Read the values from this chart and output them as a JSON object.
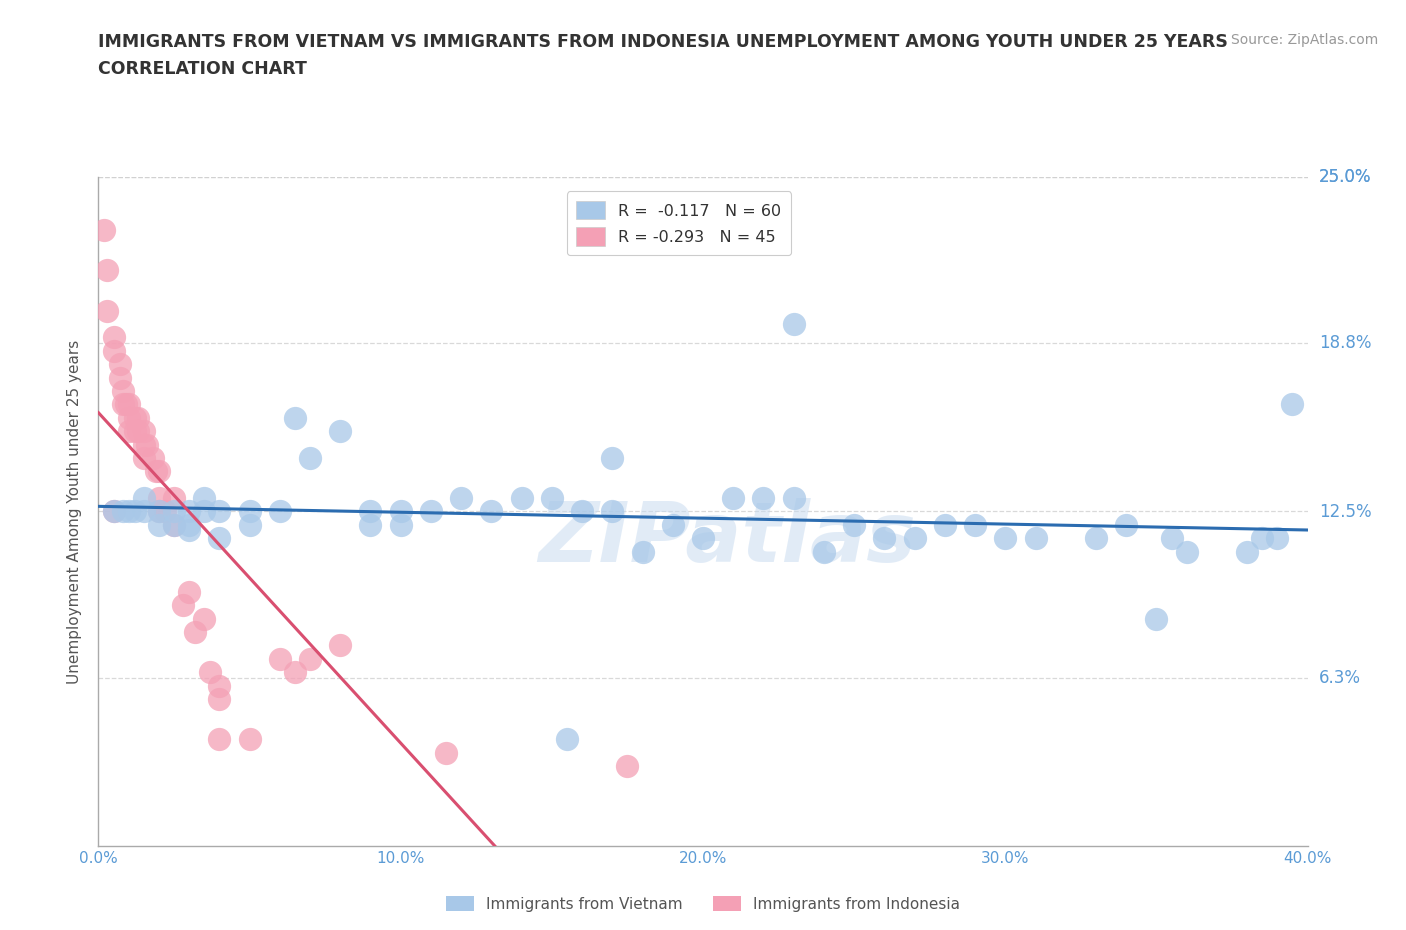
{
  "title_line1": "IMMIGRANTS FROM VIETNAM VS IMMIGRANTS FROM INDONESIA UNEMPLOYMENT AMONG YOUTH UNDER 25 YEARS",
  "title_line2": "CORRELATION CHART",
  "source_text": "Source: ZipAtlas.com",
  "ylabel": "Unemployment Among Youth under 25 years",
  "xmin": 0.0,
  "xmax": 0.4,
  "ymin": 0.0,
  "ymax": 0.25,
  "ytick_labels": [
    "6.3%",
    "12.5%",
    "18.8%",
    "25.0%"
  ],
  "ytick_values": [
    0.063,
    0.125,
    0.188,
    0.25
  ],
  "xtick_labels": [
    "0.0%",
    "10.0%",
    "20.0%",
    "30.0%",
    "40.0%"
  ],
  "xtick_values": [
    0.0,
    0.1,
    0.2,
    0.3,
    0.4
  ],
  "right_ytick_labels": [
    "6.3%",
    "12.5%",
    "18.8%",
    "25.0%"
  ],
  "right_ytick_values": [
    0.063,
    0.125,
    0.188,
    0.25
  ],
  "vietnam_color": "#a8c8e8",
  "indonesia_color": "#f4a0b5",
  "trend_vietnam_color": "#2b6cb0",
  "trend_indonesia_color": "#d94f70",
  "legend_label_vietnam": "R =  -0.117   N = 60",
  "legend_label_indonesia": "R = -0.293   N = 45",
  "watermark_color": "#c5d9ef",
  "label_color": "#5b9bd5",
  "grid_color": "#d0d0d0",
  "background_color": "#ffffff",
  "title_fontsize": 12.5,
  "subtitle_fontsize": 12.5,
  "tick_fontsize": 11,
  "source_fontsize": 10,
  "ylabel_fontsize": 11,
  "vietnam_x": [
    0.005,
    0.008,
    0.01,
    0.012,
    0.015,
    0.015,
    0.02,
    0.02,
    0.025,
    0.025,
    0.03,
    0.03,
    0.03,
    0.035,
    0.035,
    0.04,
    0.04,
    0.05,
    0.05,
    0.06,
    0.065,
    0.07,
    0.08,
    0.09,
    0.09,
    0.1,
    0.1,
    0.11,
    0.12,
    0.13,
    0.14,
    0.15,
    0.16,
    0.17,
    0.17,
    0.18,
    0.19,
    0.2,
    0.21,
    0.22,
    0.23,
    0.24,
    0.25,
    0.26,
    0.27,
    0.28,
    0.29,
    0.3,
    0.31,
    0.33,
    0.34,
    0.35,
    0.355,
    0.36,
    0.38,
    0.385,
    0.39,
    0.395,
    0.23,
    0.155
  ],
  "vietnam_y": [
    0.125,
    0.125,
    0.125,
    0.125,
    0.125,
    0.13,
    0.125,
    0.12,
    0.12,
    0.125,
    0.118,
    0.125,
    0.12,
    0.13,
    0.125,
    0.125,
    0.115,
    0.125,
    0.12,
    0.125,
    0.16,
    0.145,
    0.155,
    0.12,
    0.125,
    0.125,
    0.12,
    0.125,
    0.13,
    0.125,
    0.13,
    0.13,
    0.125,
    0.145,
    0.125,
    0.11,
    0.12,
    0.115,
    0.13,
    0.13,
    0.13,
    0.11,
    0.12,
    0.115,
    0.115,
    0.12,
    0.12,
    0.115,
    0.115,
    0.115,
    0.12,
    0.085,
    0.115,
    0.11,
    0.11,
    0.115,
    0.115,
    0.165,
    0.195,
    0.04
  ],
  "indonesia_x": [
    0.002,
    0.003,
    0.003,
    0.005,
    0.005,
    0.005,
    0.007,
    0.007,
    0.008,
    0.008,
    0.009,
    0.01,
    0.01,
    0.01,
    0.012,
    0.012,
    0.013,
    0.013,
    0.015,
    0.015,
    0.015,
    0.016,
    0.018,
    0.019,
    0.02,
    0.02,
    0.02,
    0.022,
    0.025,
    0.025,
    0.028,
    0.03,
    0.032,
    0.035,
    0.037,
    0.04,
    0.04,
    0.04,
    0.05,
    0.06,
    0.065,
    0.07,
    0.08,
    0.115,
    0.175
  ],
  "indonesia_y": [
    0.23,
    0.215,
    0.2,
    0.19,
    0.185,
    0.125,
    0.18,
    0.175,
    0.17,
    0.165,
    0.165,
    0.165,
    0.16,
    0.155,
    0.16,
    0.155,
    0.16,
    0.155,
    0.155,
    0.15,
    0.145,
    0.15,
    0.145,
    0.14,
    0.14,
    0.13,
    0.125,
    0.125,
    0.13,
    0.12,
    0.09,
    0.095,
    0.08,
    0.085,
    0.065,
    0.055,
    0.06,
    0.04,
    0.04,
    0.07,
    0.065,
    0.07,
    0.075,
    0.035,
    0.03
  ],
  "trend_vietnam_x_start": 0.0,
  "trend_vietnam_x_end": 0.4,
  "trend_indonesia_solid_x_start": 0.0,
  "trend_indonesia_solid_x_end": 0.185,
  "trend_indonesia_dash_x_start": 0.185,
  "trend_indonesia_dash_x_end": 0.4
}
